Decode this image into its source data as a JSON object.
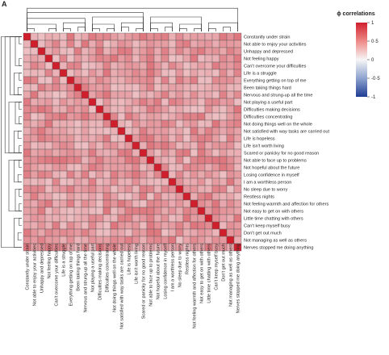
{
  "panel_label": "A",
  "colorbar": {
    "title": "ϕ correlations",
    "ticks": [
      "1",
      "0·5",
      "0",
      "-0·5",
      "-1"
    ]
  },
  "chart_data": {
    "type": "heatmap",
    "title": "",
    "value_range": [
      -1,
      1
    ],
    "labels": [
      "Constantly under strain",
      "Not able to enjoy your activities",
      "Unhappy and depressed",
      "Not feeling happy",
      "Can't overcome your difficulties",
      "Life is a struggle",
      "Everything getting on top of me",
      "Been taking things hard",
      "Nervous and strung-up all the time",
      "Not playing a useful part",
      "Difficulties making decisions",
      "Difficulties concentrating",
      "Not doing things well on the whole",
      "Not satisfied with way tasks are carried out",
      "Life is hopeless",
      "Life isn't worth living",
      "Scared or panicky for no good reason",
      "Not able to face up to problems",
      "Not hopeful about the future",
      "Losing confidence in myself",
      "I am a worthless person",
      "No sleep due to worry",
      "Restless nights",
      "Not feeling warmth and affection for others",
      "Not easy to get on with others",
      "Little time chatting with others",
      "Can't keep myself busy",
      "Don't get out much",
      "Not managing as well as others",
      "Nerves stopped me doing anything"
    ],
    "off_diagonal_range": [
      0.25,
      0.6
    ],
    "diagonal_value": 1,
    "legend_position": "top-right"
  }
}
